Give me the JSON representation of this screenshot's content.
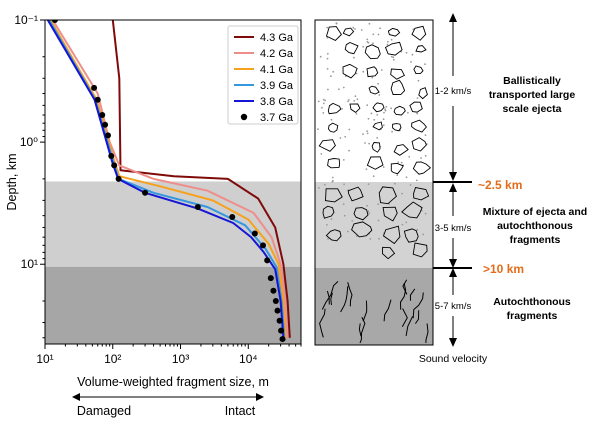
{
  "chart_data": {
    "type": "line",
    "xlabel": "Volume-weighted fragment size, m",
    "ylabel": "Depth, km",
    "xscale": "log",
    "yscale": "log",
    "y_inverted": true,
    "xlim": [
      10,
      60000
    ],
    "ylim": [
      0.1,
      45
    ],
    "x_tick_labels": [
      "10¹",
      "10²",
      "10³",
      "10⁴"
    ],
    "x_tick_values": [
      10,
      100,
      1000,
      10000
    ],
    "y_tick_labels": [
      "10⁻¹",
      "10⁰",
      "10¹"
    ],
    "y_tick_values": [
      0.1,
      1,
      10
    ],
    "legend_position": "top-right",
    "bands": [
      {
        "from": 2.1,
        "to": 10.5,
        "color": "#cfcfcf"
      },
      {
        "from": 10.5,
        "to": 45,
        "color": "#a6a6a6"
      }
    ],
    "series": [
      {
        "name": "4.3 Ga",
        "color": "#7f0a0a",
        "style": "line",
        "points": [
          [
            100,
            0.1
          ],
          [
            125,
            0.3
          ],
          [
            130,
            1.7
          ],
          [
            800,
            1.9
          ],
          [
            5000,
            2.0
          ],
          [
            14000,
            2.9
          ],
          [
            25000,
            5.0
          ],
          [
            33000,
            10
          ],
          [
            38000,
            20
          ],
          [
            41000,
            40
          ]
        ]
      },
      {
        "name": "4.2 Ga",
        "color": "#ee8e8a",
        "style": "line",
        "points": [
          [
            13,
            0.1
          ],
          [
            60,
            0.4
          ],
          [
            90,
            1.0
          ],
          [
            125,
            1.55
          ],
          [
            400,
            2.0
          ],
          [
            2500,
            2.5
          ],
          [
            12000,
            3.8
          ],
          [
            22000,
            6.0
          ],
          [
            30000,
            10
          ],
          [
            35000,
            20
          ],
          [
            38000,
            40
          ]
        ]
      },
      {
        "name": "4.1 Ga",
        "color": "#f6a21e",
        "style": "line",
        "points": [
          [
            12,
            0.1
          ],
          [
            58,
            0.45
          ],
          [
            100,
            1.3
          ],
          [
            125,
            1.9
          ],
          [
            500,
            2.3
          ],
          [
            3000,
            3.0
          ],
          [
            10000,
            4.3
          ],
          [
            20000,
            6.8
          ],
          [
            28000,
            10
          ],
          [
            33000,
            20
          ],
          [
            35500,
            40
          ]
        ]
      },
      {
        "name": "3.9 Ga",
        "color": "#3597df",
        "style": "line",
        "points": [
          [
            11.5,
            0.1
          ],
          [
            55,
            0.45
          ],
          [
            100,
            1.4
          ],
          [
            122,
            2.0
          ],
          [
            400,
            2.6
          ],
          [
            2500,
            3.4
          ],
          [
            9000,
            4.8
          ],
          [
            18000,
            7.5
          ],
          [
            26000,
            10.5
          ],
          [
            31000,
            20
          ],
          [
            34000,
            40
          ]
        ]
      },
      {
        "name": "3.8 Ga",
        "color": "#1515d5",
        "style": "line",
        "points": [
          [
            11,
            0.1
          ],
          [
            54,
            0.45
          ],
          [
            98,
            1.45
          ],
          [
            120,
            2.0
          ],
          [
            300,
            2.6
          ],
          [
            1800,
            3.5
          ],
          [
            6000,
            4.6
          ],
          [
            11000,
            6.0
          ],
          [
            17000,
            8.0
          ],
          [
            25000,
            11
          ],
          [
            30000,
            20
          ],
          [
            33000,
            40
          ]
        ]
      },
      {
        "name": "3.7 Ga",
        "color": "#000000",
        "style": "markers",
        "points": [
          [
            14,
            0.1
          ],
          [
            53,
            0.36
          ],
          [
            60,
            0.45
          ],
          [
            70,
            0.6
          ],
          [
            77,
            0.72
          ],
          [
            85,
            0.88
          ],
          [
            95,
            1.3
          ],
          [
            105,
            1.55
          ],
          [
            122,
            2.0
          ],
          [
            300,
            2.6
          ],
          [
            1800,
            3.4
          ],
          [
            5800,
            4.1
          ],
          [
            12500,
            5.6
          ],
          [
            16500,
            7.0
          ],
          [
            19000,
            9.3
          ],
          [
            21500,
            13
          ],
          [
            23500,
            16.5
          ],
          [
            25500,
            20
          ],
          [
            27000,
            24
          ],
          [
            29000,
            29
          ],
          [
            30500,
            35
          ],
          [
            32000,
            41
          ]
        ]
      }
    ]
  },
  "panel": {
    "velocity_axis_label": "Sound velocity",
    "zones": [
      {
        "name": "Ballistically transported large scale ejecta",
        "lines": [
          "Ballistically",
          "transported large",
          "scale ejecta"
        ],
        "velocity": "1-2 km/s"
      },
      {
        "name": "Mixture of ejecta and autochthonous fragments",
        "lines": [
          "Mixture of ejecta and",
          "autochthonous",
          "fragments"
        ],
        "velocity": "3-5 km/s"
      },
      {
        "name": "Autochthonous fragments",
        "lines": [
          "Autochthonous",
          "fragments"
        ],
        "velocity": "5-7 km/s"
      }
    ],
    "depth_markers": [
      {
        "label": "~2.5 km",
        "color": "#e36c1b"
      },
      {
        "label": ">10 km",
        "color": "#e36c1b"
      }
    ]
  },
  "arrow": {
    "left_label": "Damaged",
    "right_label": "Intact"
  }
}
